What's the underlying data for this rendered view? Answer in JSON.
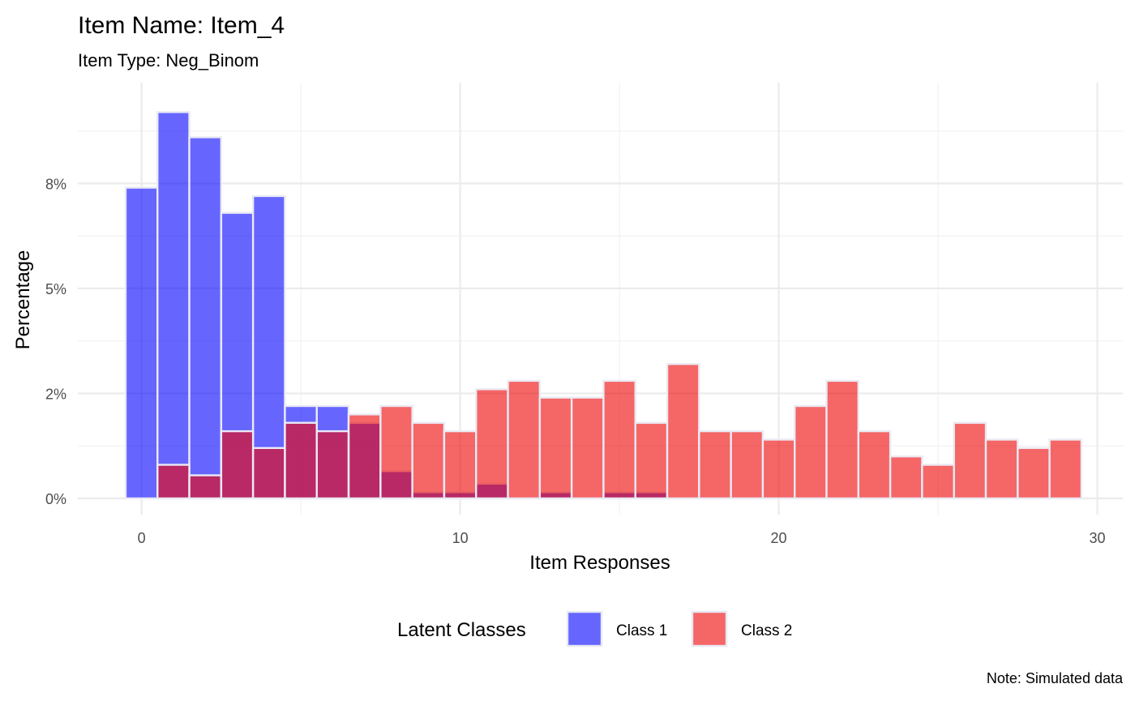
{
  "chart_data": {
    "type": "bar",
    "title": "Item Name: Item_4",
    "subtitle": "Item Type: Neg_Binom",
    "xlabel": "Item Responses",
    "ylabel": "Percentage",
    "caption": "Note: Simulated data",
    "xlim": [
      -2,
      30.8
    ],
    "ylim": [
      0,
      9.9
    ],
    "x_ticks": [
      0,
      10,
      20,
      30
    ],
    "x_tick_labels": [
      "0",
      "10",
      "20",
      "30"
    ],
    "y_ticks": [
      0,
      2.5,
      5,
      7.5
    ],
    "y_tick_labels": [
      "0%",
      "2%",
      "5%",
      "8%"
    ],
    "grid": true,
    "x": [
      0,
      1,
      2,
      3,
      4,
      5,
      6,
      7,
      8,
      9,
      10,
      11,
      12,
      13,
      14,
      15,
      16,
      17,
      18,
      19,
      20,
      21,
      22,
      23,
      24,
      25,
      26,
      27,
      28,
      29
    ],
    "legend": {
      "title": "Latent Classes",
      "position": "bottom"
    },
    "series": [
      {
        "name": "Class 1",
        "color": "#0000FF",
        "values": [
          7.4,
          9.2,
          8.6,
          6.8,
          7.2,
          2.2,
          2.2,
          1.8,
          0.65,
          0.15,
          0.15,
          0.35,
          0,
          0.15,
          0,
          0.15,
          0.15,
          0,
          0,
          0,
          0,
          0,
          0,
          0,
          0,
          0,
          0,
          0,
          0,
          0
        ]
      },
      {
        "name": "Class 2",
        "color": "#EE0000",
        "values": [
          0,
          0.8,
          0.55,
          1.6,
          1.2,
          1.8,
          1.6,
          2.0,
          2.2,
          1.8,
          1.6,
          2.6,
          2.8,
          2.4,
          2.4,
          2.8,
          1.8,
          3.2,
          1.6,
          1.6,
          1.4,
          2.2,
          2.8,
          1.6,
          1.0,
          0.8,
          1.8,
          1.4,
          1.2,
          1.4
        ]
      }
    ]
  }
}
